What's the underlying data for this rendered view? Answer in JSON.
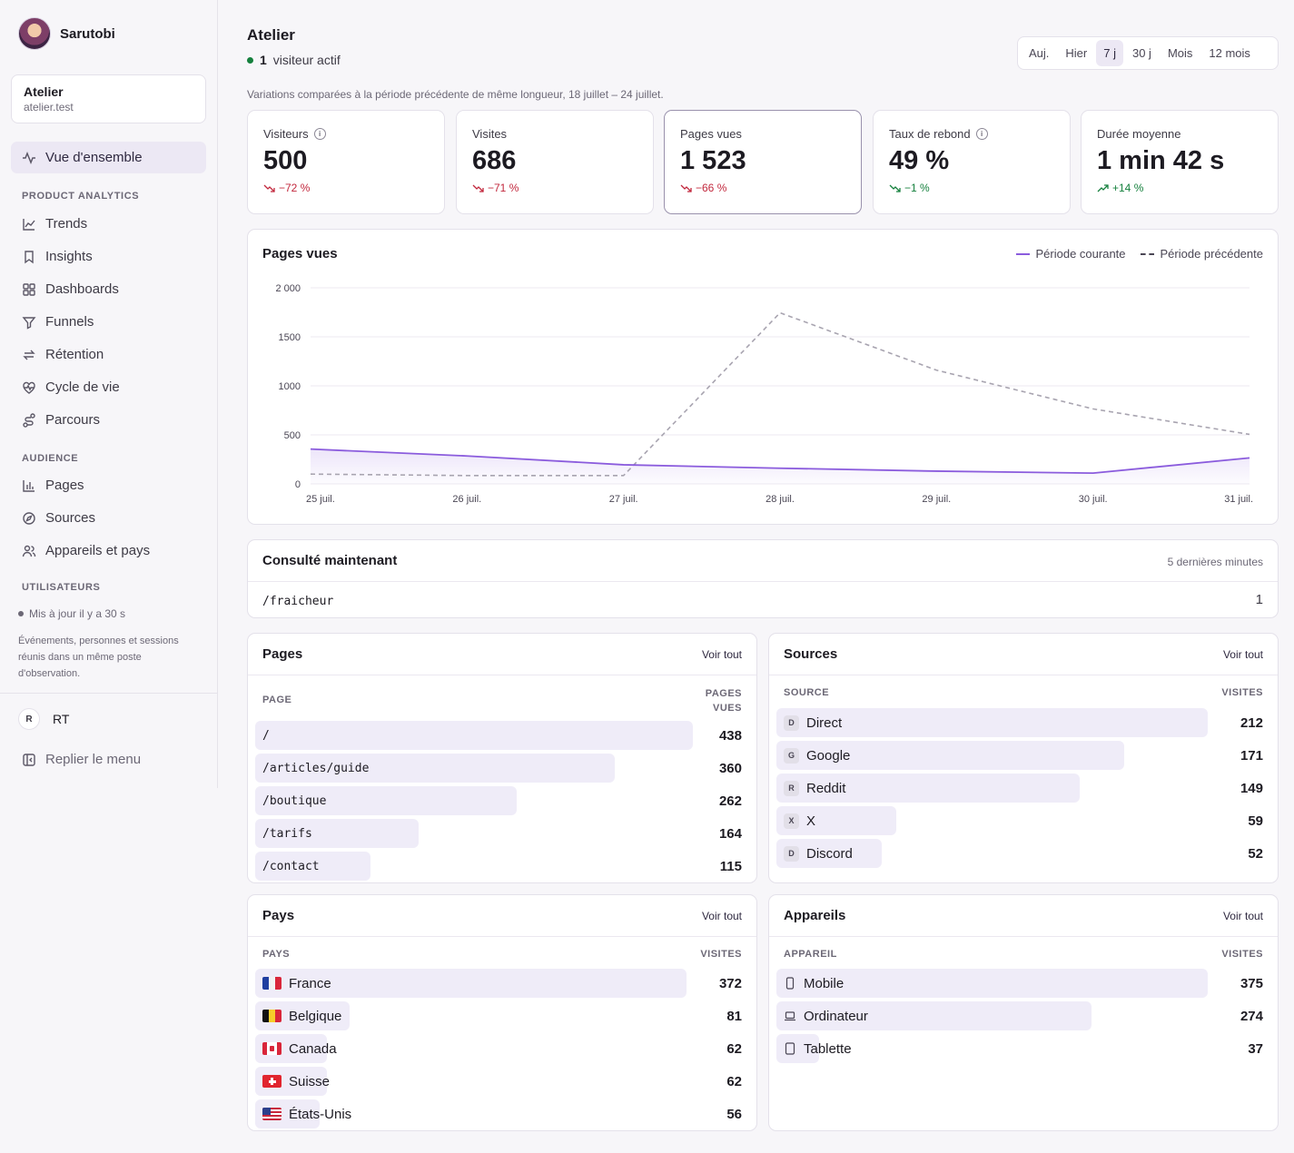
{
  "sidebar": {
    "brand": "Sarutobi",
    "site": {
      "name": "Atelier",
      "domain": "atelier.test"
    },
    "overview": "Vue d'ensemble",
    "sections": {
      "product": "PRODUCT ANALYTICS",
      "audience": "AUDIENCE",
      "users": "UTILISATEURS"
    },
    "product_items": [
      "Trends",
      "Insights",
      "Dashboards",
      "Funnels",
      "Rétention",
      "Cycle de vie",
      "Parcours"
    ],
    "audience_items": [
      "Pages",
      "Sources",
      "Appareils et pays"
    ],
    "updated": "Mis à jour il y a 30 s",
    "description": "Événements, personnes et sessions réunis dans un même poste d'observation.",
    "user": {
      "initial": "R",
      "name": "RT"
    },
    "collapse": "Replier le menu"
  },
  "header": {
    "title": "Atelier",
    "live_count": "1",
    "live_label": "visiteur actif",
    "ranges": [
      "Auj.",
      "Hier",
      "7 j",
      "30 j",
      "Mois",
      "12 mois"
    ],
    "active_range": "7 j",
    "compare_note": "Variations comparées à la période précédente de même longueur, 18 juillet – 24 juillet."
  },
  "kpis": [
    {
      "label": "Visiteurs",
      "info": true,
      "value": "500",
      "delta": "−72 %",
      "trend": "down"
    },
    {
      "label": "Visites",
      "info": false,
      "value": "686",
      "delta": "−71 %",
      "trend": "down"
    },
    {
      "label": "Pages vues",
      "info": false,
      "value": "1 523",
      "delta": "−66 %",
      "trend": "down"
    },
    {
      "label": "Taux de rebond",
      "info": true,
      "value": "49 %",
      "delta": "−1 %",
      "trend": "down-good"
    },
    {
      "label": "Durée moyenne",
      "info": false,
      "value": "1 min 42 s",
      "delta": "+14 %",
      "trend": "up"
    }
  ],
  "chart_data": {
    "type": "line",
    "title": "Pages vues",
    "x": [
      "25 juil.",
      "26 juil.",
      "27 juil.",
      "28 juil.",
      "29 juil.",
      "30 juil.",
      "31 juil."
    ],
    "series": [
      {
        "name": "Période courante",
        "values": [
          355,
          285,
          195,
          160,
          130,
          110,
          265
        ],
        "color": "#8b5cdd",
        "style": "solid"
      },
      {
        "name": "Période précédente",
        "values": [
          100,
          85,
          85,
          1745,
          1160,
          765,
          505
        ],
        "color": "#a8a4b0",
        "style": "dashed"
      }
    ],
    "y_ticks": [
      "2 000",
      "1500",
      "1000",
      "500",
      "0"
    ],
    "ylim": [
      0,
      2000
    ],
    "grid": true,
    "legend": "top-right"
  },
  "live_pages": {
    "title": "Consulté maintenant",
    "window": "5 dernières minutes",
    "rows": [
      {
        "path": "/fraicheur",
        "count": "1"
      }
    ]
  },
  "pages": {
    "title": "Pages",
    "view_all": "Voir tout",
    "col_label": "PAGE",
    "col_value_1": "PAGES",
    "col_value_2": "VUES",
    "rows": [
      {
        "label": "/",
        "value": "438",
        "share": 1.0
      },
      {
        "label": "/articles/guide",
        "value": "360",
        "share": 0.822
      },
      {
        "label": "/boutique",
        "value": "262",
        "share": 0.598
      },
      {
        "label": "/tarifs",
        "value": "164",
        "share": 0.374
      },
      {
        "label": "/contact",
        "value": "115",
        "share": 0.263
      }
    ]
  },
  "sources": {
    "title": "Sources",
    "view_all": "Voir tout",
    "col_label": "SOURCE",
    "col_value": "VISITES",
    "rows": [
      {
        "badge": "D",
        "label": "Direct",
        "value": "212",
        "share": 1.0
      },
      {
        "badge": "G",
        "label": "Google",
        "value": "171",
        "share": 0.807
      },
      {
        "badge": "R",
        "label": "Reddit",
        "value": "149",
        "share": 0.703
      },
      {
        "badge": "X",
        "label": "X",
        "value": "59",
        "share": 0.278
      },
      {
        "badge": "D",
        "label": "Discord",
        "value": "52",
        "share": 0.245
      }
    ]
  },
  "countries": {
    "title": "Pays",
    "view_all": "Voir tout",
    "col_label": "PAYS",
    "col_value": "VISITES",
    "rows": [
      {
        "flag": "fr",
        "label": "France",
        "value": "372",
        "share": 1.0
      },
      {
        "flag": "be",
        "label": "Belgique",
        "value": "81",
        "share": 0.218
      },
      {
        "flag": "ca",
        "label": "Canada",
        "value": "62",
        "share": 0.167
      },
      {
        "flag": "ch",
        "label": "Suisse",
        "value": "62",
        "share": 0.167
      },
      {
        "flag": "us",
        "label": "États-Unis",
        "value": "56",
        "share": 0.15
      }
    ]
  },
  "devices": {
    "title": "Appareils",
    "view_all": "Voir tout",
    "col_label": "APPAREIL",
    "col_value": "VISITES",
    "rows": [
      {
        "icon": "mobile-icon",
        "label": "Mobile",
        "value": "375",
        "share": 1.0
      },
      {
        "icon": "laptop-icon",
        "label": "Ordinateur",
        "value": "274",
        "share": 0.731
      },
      {
        "icon": "tablet-icon",
        "label": "Tablette",
        "value": "37",
        "share": 0.099
      }
    ]
  }
}
